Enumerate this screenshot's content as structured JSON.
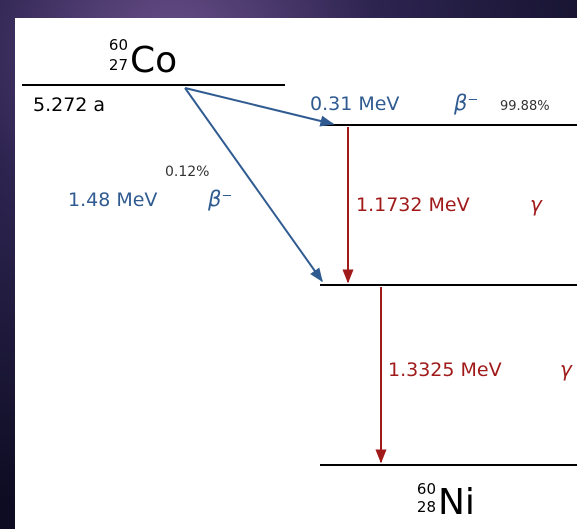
{
  "parent": {
    "mass_number": "60",
    "atomic_number": "27",
    "symbol": "Co",
    "half_life": "5.272 a"
  },
  "beta_decays": [
    {
      "energy": "0.31 MeV",
      "particle": "β⁻",
      "probability": "99.88%"
    },
    {
      "energy": "1.48 MeV",
      "particle": "β⁻",
      "probability": "0.12%"
    }
  ],
  "gamma_transitions": [
    {
      "energy": "1.1732 MeV",
      "particle": "γ"
    },
    {
      "energy": "1.3325 MeV",
      "particle": "γ"
    }
  ],
  "daughter": {
    "mass_number": "60",
    "atomic_number": "28",
    "symbol": "Ni"
  }
}
